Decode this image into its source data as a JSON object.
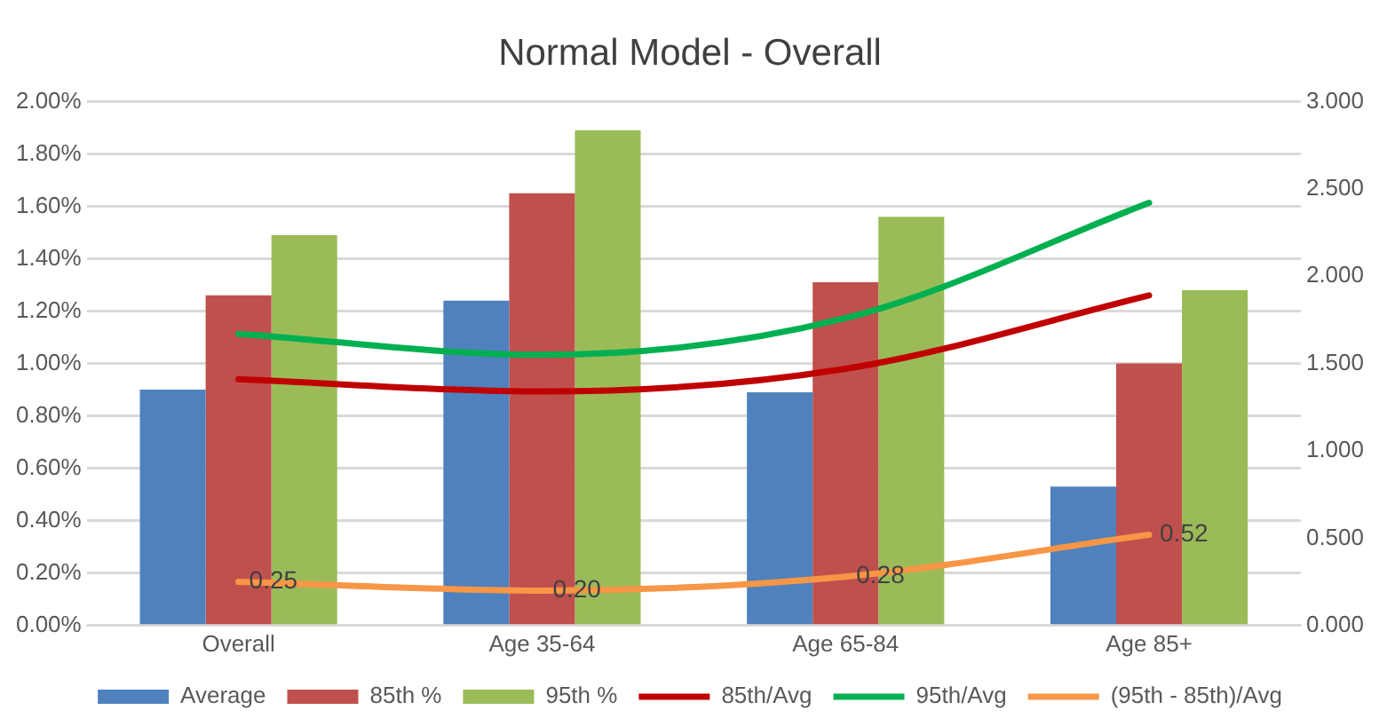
{
  "chart_data": {
    "type": "bar",
    "title": "Normal Model - Overall",
    "categories": [
      "Overall",
      "Age 35-64",
      "Age 65-84",
      "Age 85+"
    ],
    "series": [
      {
        "name": "Average",
        "color": "#4f81bd",
        "values": [
          0.9,
          1.24,
          0.89,
          0.53
        ]
      },
      {
        "name": "85th %",
        "color": "#c0504d",
        "values": [
          1.26,
          1.65,
          1.31,
          1.0
        ]
      },
      {
        "name": "95th %",
        "color": "#9bbb59",
        "values": [
          1.49,
          1.89,
          1.56,
          1.28
        ]
      },
      {
        "name": "85th/Avg",
        "type": "line",
        "axis": "y2",
        "color": "#c00000",
        "values": [
          1.41,
          1.34,
          1.47,
          1.89
        ]
      },
      {
        "name": "95th/Avg",
        "type": "line",
        "axis": "y2",
        "color": "#00b050",
        "values": [
          1.67,
          1.55,
          1.76,
          2.42
        ]
      },
      {
        "name": "(95th - 85th)/Avg",
        "type": "line",
        "axis": "y2",
        "color": "#f79646",
        "values": [
          0.25,
          0.2,
          0.28,
          0.52
        ],
        "value_labels": [
          "0.25",
          "0.20",
          "0.28",
          "0.52"
        ]
      }
    ],
    "ylim": [
      0,
      2
    ],
    "yticks": [
      {
        "value": 0,
        "label": "0.00%"
      },
      {
        "value": 0.2,
        "label": "0.20%"
      },
      {
        "value": 0.4,
        "label": "0.40%"
      },
      {
        "value": 0.6,
        "label": "0.60%"
      },
      {
        "value": 0.8,
        "label": "0.80%"
      },
      {
        "value": 1,
        "label": "1.00%"
      },
      {
        "value": 1.2,
        "label": "1.20%"
      },
      {
        "value": 1.4,
        "label": "1.40%"
      },
      {
        "value": 1.6,
        "label": "1.60%"
      },
      {
        "value": 1.8,
        "label": "1.80%"
      },
      {
        "value": 2,
        "label": "2.00%"
      }
    ],
    "y2lim": [
      0,
      3
    ],
    "y2ticks": [
      {
        "value": 0,
        "label": "0.000"
      },
      {
        "value": 0.5,
        "label": "0.500"
      },
      {
        "value": 1,
        "label": "1.000"
      },
      {
        "value": 1.5,
        "label": "1.500"
      },
      {
        "value": 2,
        "label": "2.000"
      },
      {
        "value": 2.5,
        "label": "2.500"
      },
      {
        "value": 3,
        "label": "3.000"
      }
    ],
    "grid": "y",
    "legend": "bottom",
    "marker": "none"
  }
}
